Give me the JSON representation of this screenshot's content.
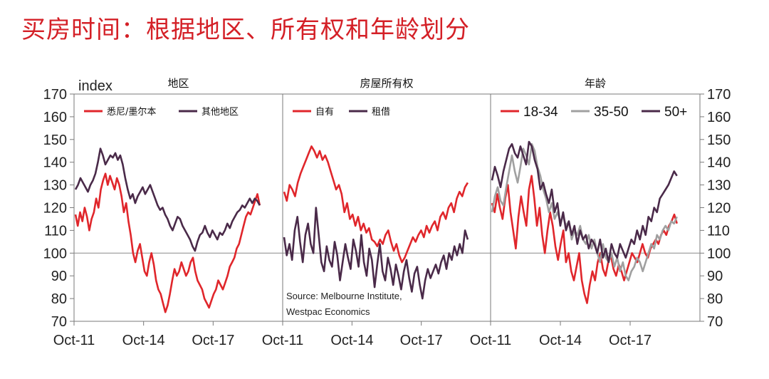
{
  "title": "买房时间：根据地区、所有权和年龄划分",
  "chart_data": {
    "type": "line",
    "ylabel": "index",
    "ylim": [
      70,
      170
    ],
    "yticks": [
      70,
      80,
      90,
      100,
      110,
      120,
      130,
      140,
      150,
      160,
      170
    ],
    "reference_line": 100,
    "source": [
      "Source: Melbourne Institute,",
      "Westpac Economics"
    ],
    "panels": [
      {
        "title": "地区",
        "xticks": [
          "Oct-11",
          "Oct-14",
          "Oct-17"
        ],
        "series": [
          {
            "name": "悉尼/墨尔本",
            "color": "#e0262b",
            "values": [
              117,
              112,
              118,
              114,
              120,
              116,
              110,
              115,
              118,
              124,
              120,
              128,
              132,
              135,
              130,
              134,
              131,
              128,
              133,
              130,
              125,
              118,
              122,
              114,
              108,
              100,
              96,
              101,
              104,
              98,
              92,
              90,
              96,
              100,
              95,
              88,
              84,
              82,
              78,
              74,
              77,
              82,
              88,
              93,
              90,
              92,
              96,
              93,
              90,
              92,
              96,
              98,
              92,
              88,
              86,
              84,
              80,
              78,
              76,
              79,
              82,
              84,
              88,
              86,
              84,
              87,
              90,
              94,
              96,
              98,
              102,
              104,
              108,
              112,
              116,
              118,
              117,
              120,
              123,
              126,
              121
            ]
          },
          {
            "name": "其他地区",
            "color": "#4a2a49",
            "values": [
              128,
              130,
              133,
              131,
              129,
              127,
              130,
              132,
              135,
              140,
              146,
              143,
              139,
              141,
              143,
              142,
              144,
              141,
              143,
              139,
              133,
              128,
              124,
              126,
              122,
              125,
              127,
              129,
              126,
              128,
              130,
              127,
              124,
              121,
              119,
              120,
              117,
              115,
              112,
              110,
              113,
              116,
              115,
              112,
              110,
              108,
              106,
              103,
              101,
              105,
              108,
              109,
              112,
              109,
              107,
              110,
              108,
              106,
              109,
              108,
              110,
              113,
              111,
              114,
              116,
              118,
              119,
              121,
              120,
              122,
              124,
              122,
              124,
              123,
              121
            ]
          }
        ]
      },
      {
        "title": "房屋所有权",
        "xticks": [
          "Oct-11",
          "Oct-14",
          "Oct-17"
        ],
        "series": [
          {
            "name": "自有",
            "color": "#e0262b",
            "values": [
              127,
              123,
              130,
              128,
              125,
              131,
              135,
              138,
              141,
              144,
              147,
              145,
              142,
              145,
              141,
              143,
              140,
              136,
              132,
              128,
              130,
              126,
              118,
              122,
              115,
              117,
              112,
              116,
              110,
              113,
              109,
              111,
              106,
              105,
              103,
              106,
              104,
              108,
              110,
              105,
              101,
              104,
              99,
              96,
              98,
              101,
              104,
              107,
              105,
              108,
              110,
              107,
              112,
              109,
              112,
              114,
              110,
              116,
              118,
              115,
              120,
              122,
              118,
              124,
              127,
              125,
              129,
              131
            ]
          },
          {
            "name": "租借",
            "color": "#4a2a49",
            "values": [
              107,
              99,
              104,
              97,
              110,
              116,
              105,
              96,
              108,
              113,
              104,
              100,
              120,
              108,
              96,
              92,
              103,
              97,
              94,
              105,
              99,
              88,
              96,
              104,
              98,
              93,
              106,
              101,
              94,
              108,
              96,
              90,
              102,
              97,
              85,
              95,
              104,
              92,
              88,
              98,
              93,
              86,
              95,
              90,
              84,
              92,
              97,
              89,
              83,
              91,
              94,
              86,
              80,
              88,
              93,
              89,
              92,
              95,
              91,
              96,
              99,
              93,
              100,
              97,
              103,
              99,
              104,
              100,
              110,
              106
            ]
          }
        ]
      },
      {
        "title": "年龄",
        "xticks": [
          "Oct-11",
          "Oct-14",
          "Oct-17"
        ],
        "series": [
          {
            "name": "18-34",
            "color": "#e0262b",
            "values": [
              122,
              118,
              126,
              120,
              115,
              124,
              130,
              118,
              110,
              102,
              116,
              125,
              118,
              112,
              128,
              134,
              124,
              112,
              120,
              108,
              100,
              110,
              118,
              112,
              103,
              97,
              104,
              110,
              96,
              100,
              92,
              88,
              94,
              100,
              88,
              82,
              78,
              86,
              92,
              88,
              96,
              100,
              93,
              90,
              96,
              99,
              93,
              90,
              95,
              92,
              88,
              92,
              96,
              100,
              98,
              96,
              100,
              104,
              100,
              98,
              102,
              104,
              106,
              104,
              108,
              110,
              108,
              112,
              114,
              117,
              113
            ]
          },
          {
            "name": "35-50",
            "color": "#a0a0a0",
            "values": [
              118,
              125,
              129,
              123,
              121,
              129,
              136,
              143,
              136,
              131,
              138,
              146,
              143,
              139,
              148,
              145,
              138,
              134,
              128,
              124,
              118,
              122,
              115,
              118,
              114,
              116,
              112,
              114,
              106,
              110,
              108,
              112,
              106,
              104,
              108,
              102,
              106,
              100,
              96,
              104,
              98,
              96,
              100,
              94,
              98,
              92,
              96,
              90,
              88,
              92,
              94,
              98,
              96,
              92,
              96,
              100,
              104,
              102,
              108,
              106,
              110,
              112,
              110,
              114,
              113,
              116
            ]
          },
          {
            "name": "50+",
            "color": "#4a2a49",
            "values": [
              132,
              138,
              134,
              129,
              136,
              141,
              146,
              148,
              144,
              142,
              147,
              143,
              139,
              149,
              147,
              141,
              137,
              128,
              131,
              126,
              122,
              128,
              118,
              122,
              112,
              118,
              110,
              114,
              108,
              112,
              104,
              110,
              106,
              108,
              102,
              106,
              104,
              100,
              106,
              98,
              102,
              96,
              104,
              100,
              98,
              104,
              101,
              98,
              102,
              106,
              104,
              110,
              106,
              112,
              108,
              116,
              114,
              120,
              118,
              124,
              126,
              128,
              130,
              133,
              136,
              134
            ]
          }
        ]
      }
    ]
  }
}
